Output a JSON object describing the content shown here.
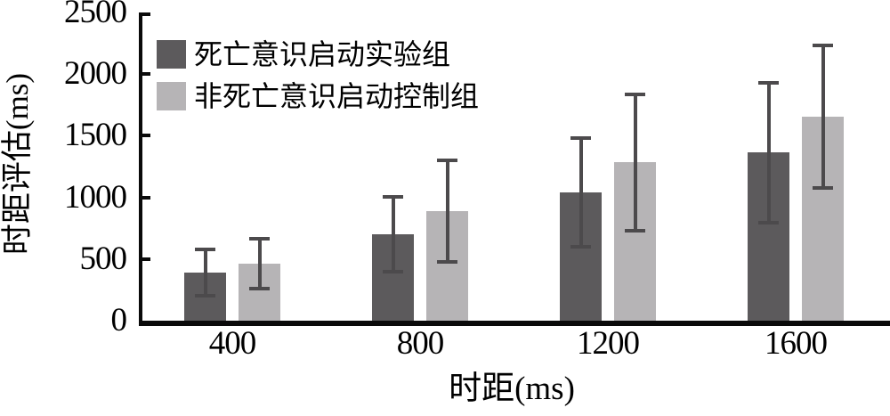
{
  "chart_data": {
    "type": "bar",
    "title": "",
    "xlabel": "时距(ms)",
    "ylabel": "时距评估(ms)",
    "categories": [
      "400",
      "800",
      "1200",
      "1600"
    ],
    "series": [
      {
        "name": "死亡意识启动实验组",
        "color": "#5c5a5c",
        "values": [
          390,
          700,
          1040,
          1365
        ],
        "errors": [
          195,
          310,
          450,
          575
        ]
      },
      {
        "name": "非死亡意识启动控制组",
        "color": "#b6b4b6",
        "values": [
          460,
          890,
          1285,
          1655
        ],
        "errors": [
          210,
          420,
          560,
          585
        ]
      }
    ],
    "ylim": [
      0,
      2500
    ],
    "yticks": [
      0,
      500,
      1000,
      1500,
      2000,
      2500
    ],
    "legend_position": "top-left",
    "grid": false,
    "error_bar_color": "#4c4a4c",
    "axis_color": "#0a0a0a"
  }
}
